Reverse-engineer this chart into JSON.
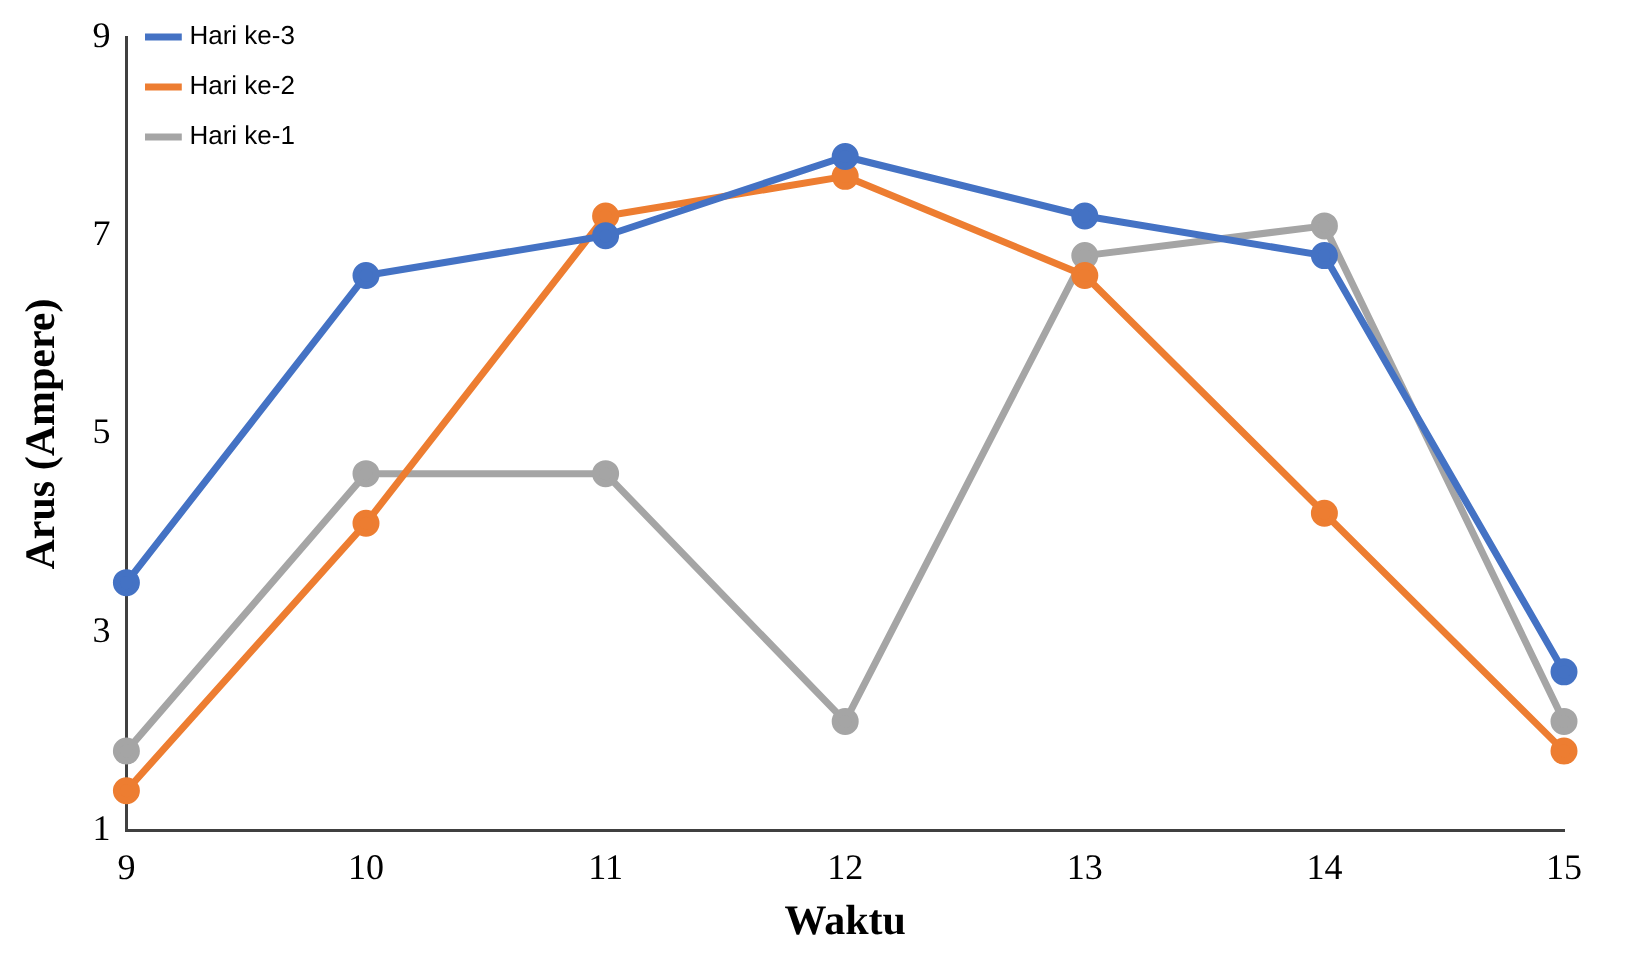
{
  "chart_data": {
    "type": "line",
    "xlabel": "Waktu",
    "ylabel": "Arus (Ampere)",
    "categories": [
      "9",
      "10",
      "11",
      "12",
      "13",
      "14",
      "15"
    ],
    "series": [
      {
        "name": "Hari ke-3",
        "color": "#4472c4",
        "values": [
          3.5,
          6.6,
          7.0,
          7.8,
          7.2,
          6.8,
          2.6
        ]
      },
      {
        "name": "Hari ke-2",
        "color": "#ed7d31",
        "values": [
          1.4,
          4.1,
          7.2,
          7.6,
          6.6,
          4.2,
          1.8
        ]
      },
      {
        "name": "Hari ke-1",
        "color": "#a5a5a5",
        "values": [
          1.8,
          4.6,
          4.6,
          2.1,
          6.8,
          7.1,
          2.1
        ]
      }
    ],
    "ylim": [
      1,
      9
    ],
    "yticks": [
      1,
      3,
      5,
      7,
      9
    ],
    "grid": false,
    "legend": "top left",
    "marker": "circle",
    "line_style": "solid"
  }
}
